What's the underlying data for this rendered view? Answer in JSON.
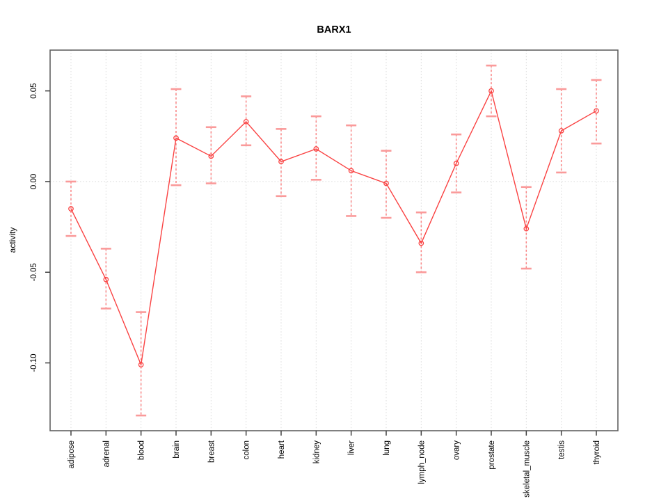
{
  "chart_data": {
    "type": "line",
    "title": "BARX1",
    "xlabel": "",
    "ylabel": "activity",
    "categories": [
      "adipose",
      "adrenal",
      "blood",
      "brain",
      "breast",
      "colon",
      "heart",
      "kidney",
      "liver",
      "lung",
      "lymph_node",
      "ovary",
      "prostate",
      "skeletal_muscle",
      "testis",
      "thyroid"
    ],
    "series": [
      {
        "name": "activity",
        "values": [
          -0.015,
          -0.054,
          -0.101,
          0.024,
          0.014,
          0.033,
          0.011,
          0.018,
          0.006,
          -0.001,
          -0.034,
          0.01,
          0.05,
          -0.026,
          0.028,
          0.039
        ],
        "ci_upper": [
          0.0,
          -0.037,
          -0.072,
          0.051,
          0.03,
          0.047,
          0.029,
          0.036,
          0.031,
          0.017,
          -0.017,
          0.026,
          0.064,
          -0.003,
          0.051,
          0.056
        ],
        "ci_lower": [
          -0.03,
          -0.07,
          -0.129,
          -0.002,
          -0.001,
          0.02,
          -0.008,
          0.001,
          -0.019,
          -0.02,
          -0.05,
          -0.006,
          0.036,
          -0.048,
          0.005,
          0.021
        ]
      }
    ],
    "yticks": [
      0.05,
      0.0,
      -0.05,
      -0.1
    ],
    "ytick_labels": [
      "0.05",
      "0.00",
      "-0.05",
      "-0.10"
    ],
    "ylim": [
      -0.1374,
      0.0725
    ],
    "grid": {
      "vertical_category_lines": true,
      "horizontal_zero_line": true,
      "style": "dotted"
    },
    "legend": "none",
    "colors": {
      "line": "#fa4242",
      "point": "#fa4242",
      "error_bar": "#fa8484",
      "error_cap": "#fa9a9a",
      "grid": "#d9d9d9",
      "box": "#606060",
      "tick": "#404040",
      "text": "#000000",
      "background": "#ffffff"
    }
  }
}
